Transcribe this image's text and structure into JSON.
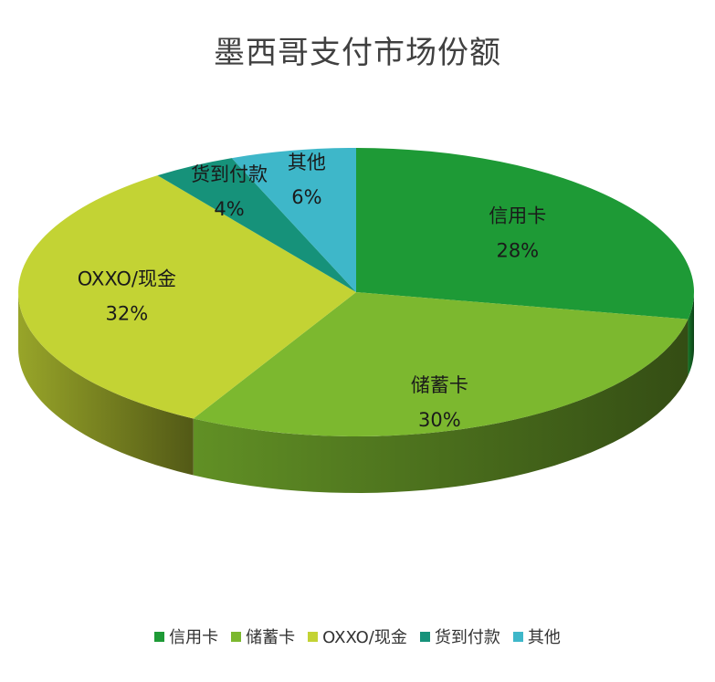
{
  "chart_data": {
    "type": "pie",
    "title": "墨西哥支付市场份额",
    "slices": [
      {
        "label": "信用卡",
        "value": 28,
        "value_label": "28%",
        "color": "#1e9a36"
      },
      {
        "label": "储蓄卡",
        "value": 30,
        "value_label": "30%",
        "color": "#7cb82f"
      },
      {
        "label": "OXXO/现金",
        "value": 32,
        "value_label": "32%",
        "color": "#c3d334"
      },
      {
        "label": "货到付款",
        "value": 4,
        "value_label": "4%",
        "color": "#16927a"
      },
      {
        "label": "其他",
        "value": 6,
        "value_label": "6%",
        "color": "#3eb7c9"
      }
    ],
    "legend_position": "bottom",
    "style": "3d"
  }
}
